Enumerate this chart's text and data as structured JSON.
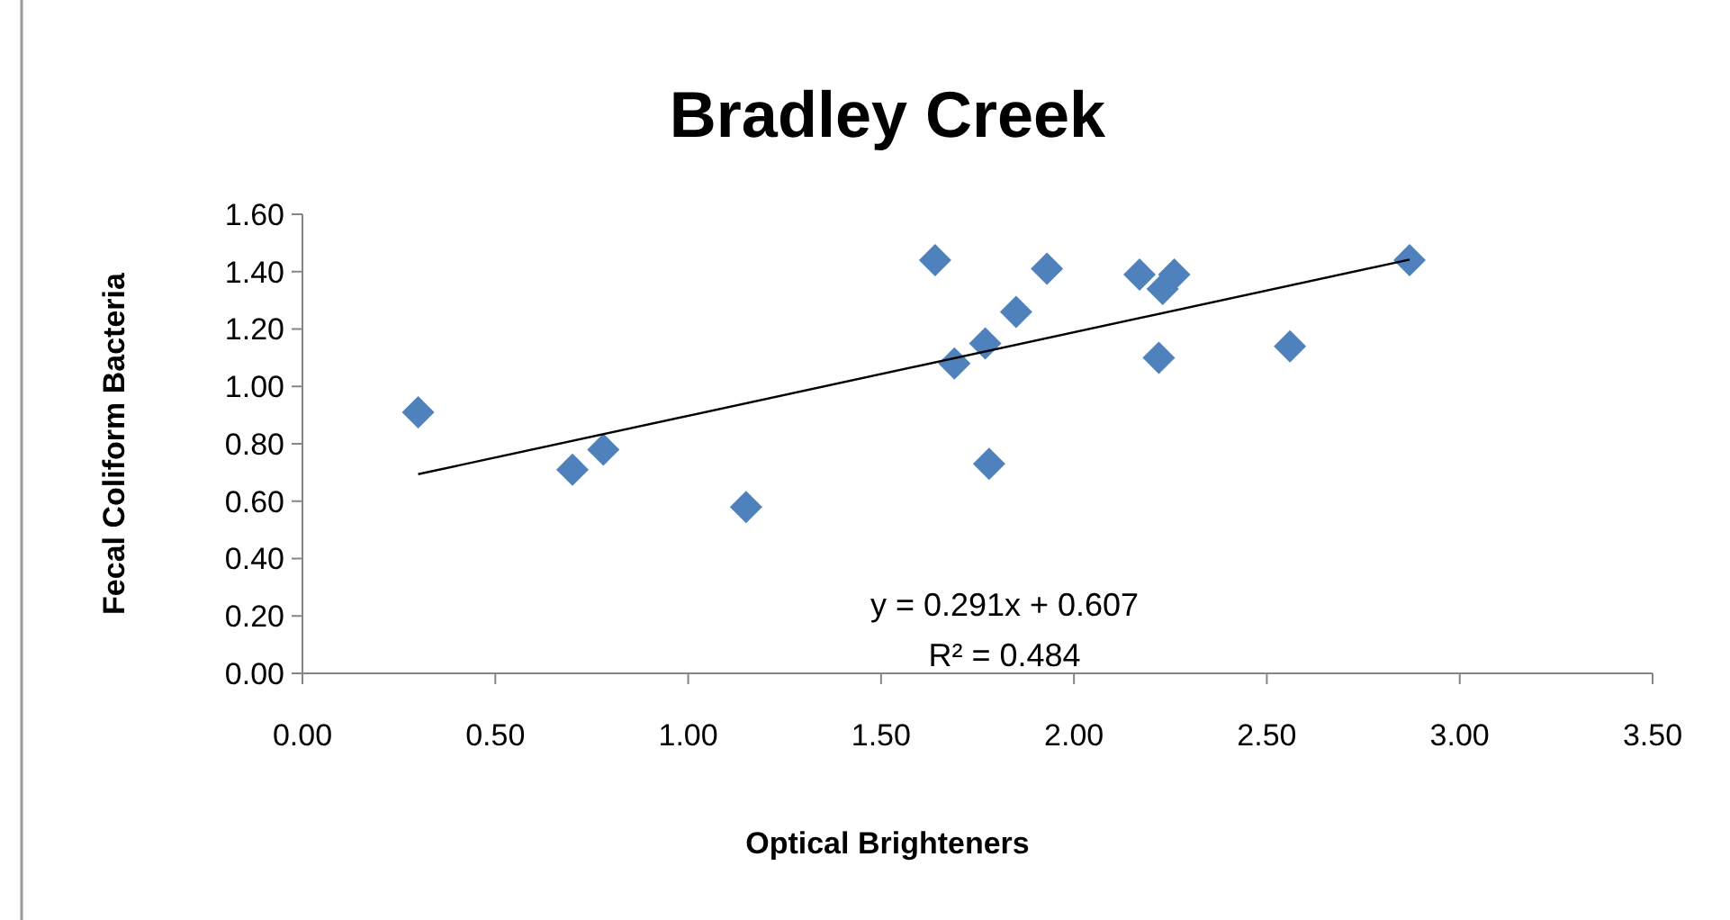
{
  "chart_data": {
    "type": "scatter",
    "title": "Bradley Creek",
    "xlabel": "Optical Brighteners",
    "ylabel": "Fecal Coliform Bacteria",
    "xlim": [
      0,
      3.5
    ],
    "xticks": [
      {
        "value": 0,
        "label": "0.00"
      },
      {
        "value": 0.5,
        "label": "0.50"
      },
      {
        "value": 1,
        "label": "1.00"
      },
      {
        "value": 1.5,
        "label": "1.50"
      },
      {
        "value": 2,
        "label": "2.00"
      },
      {
        "value": 2.5,
        "label": "2.50"
      },
      {
        "value": 3,
        "label": "3.00"
      },
      {
        "value": 3.5,
        "label": "3.50"
      }
    ],
    "ylim": [
      0,
      1.6
    ],
    "yticks": [
      {
        "value": 0,
        "label": "0.00"
      },
      {
        "value": 0.2,
        "label": "0.20"
      },
      {
        "value": 0.4,
        "label": "0.40"
      },
      {
        "value": 0.6,
        "label": "0.60"
      },
      {
        "value": 0.8,
        "label": "0.80"
      },
      {
        "value": 1,
        "label": "1.00"
      },
      {
        "value": 1.2,
        "label": "1.20"
      },
      {
        "value": 1.4,
        "label": "1.40"
      },
      {
        "value": 1.6,
        "label": "1.60"
      }
    ],
    "grid": false,
    "series": [
      {
        "marker": "diamond",
        "color": "#4f81bd",
        "x": [
          0.3,
          0.7,
          0.78,
          1.15,
          1.64,
          1.69,
          1.77,
          1.78,
          1.85,
          1.93,
          2.17,
          2.23,
          2.26,
          2.22,
          2.56,
          2.87
        ],
        "values": [
          0.91,
          0.71,
          0.78,
          0.58,
          1.44,
          1.08,
          1.15,
          0.73,
          1.26,
          1.41,
          1.39,
          1.34,
          1.39,
          1.1,
          1.14,
          1.44
        ]
      },
      {
        "type": "line",
        "marker": "none",
        "color": "#000000",
        "x": [
          0.3,
          2.87
        ],
        "values": [
          0.694,
          1.442
        ]
      }
    ],
    "annotations": [
      "y = 0.291x + 0.607",
      "R² = 0.484"
    ]
  }
}
